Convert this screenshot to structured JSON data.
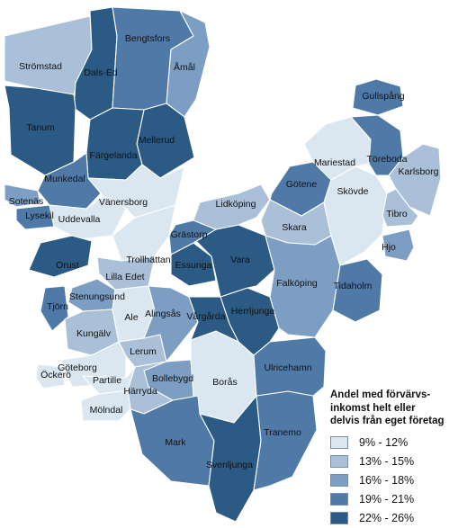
{
  "legend": {
    "title_lines": [
      "Andel med förvärvs-",
      "inkomst helt eller",
      "delvis från eget företag"
    ],
    "classes": [
      {
        "label": "9% - 12%",
        "color": "#dbe7f0"
      },
      {
        "label": "13% - 15%",
        "color": "#aac0d8"
      },
      {
        "label": "16% - 18%",
        "color": "#7d9ec3"
      },
      {
        "label": "19% - 21%",
        "color": "#4f7aa8"
      },
      {
        "label": "22% - 26%",
        "color": "#2b5a85"
      }
    ]
  },
  "municipalities": [
    {
      "name": "Strömstad",
      "class": 1
    },
    {
      "name": "Dals-Ed",
      "class": 4
    },
    {
      "name": "Bengtsfors",
      "class": 3
    },
    {
      "name": "Åmål",
      "class": 2
    },
    {
      "name": "Tanum",
      "class": 4
    },
    {
      "name": "Mellerud",
      "class": 4
    },
    {
      "name": "Färgelanda",
      "class": 4
    },
    {
      "name": "Munkedal",
      "class": 3
    },
    {
      "name": "Sotenäs",
      "class": 2
    },
    {
      "name": "Lysekil",
      "class": 3
    },
    {
      "name": "Uddevalla",
      "class": 0
    },
    {
      "name": "Vänersborg",
      "class": 0
    },
    {
      "name": "Orust",
      "class": 4
    },
    {
      "name": "Trollhättan",
      "class": 0
    },
    {
      "name": "Lilla Edet",
      "class": 1
    },
    {
      "name": "Stenungsund",
      "class": 2
    },
    {
      "name": "Tjörn",
      "class": 3
    },
    {
      "name": "Kungälv",
      "class": 1
    },
    {
      "name": "Ale",
      "class": 0
    },
    {
      "name": "Lerum",
      "class": 1
    },
    {
      "name": "Öckerö",
      "class": 0
    },
    {
      "name": "Göteborg",
      "class": 0
    },
    {
      "name": "Partille",
      "class": 0
    },
    {
      "name": "Härryda",
      "class": 1
    },
    {
      "name": "Mölndal",
      "class": 0
    },
    {
      "name": "Alingsås",
      "class": 2
    },
    {
      "name": "Bollebygd",
      "class": 2
    },
    {
      "name": "Borås",
      "class": 0
    },
    {
      "name": "Mark",
      "class": 3
    },
    {
      "name": "Svenljunga",
      "class": 4
    },
    {
      "name": "Tranemo",
      "class": 3
    },
    {
      "name": "Ulricehamn",
      "class": 3
    },
    {
      "name": "Herrljunga",
      "class": 4
    },
    {
      "name": "Vårgårda",
      "class": 4
    },
    {
      "name": "Essunga",
      "class": 4
    },
    {
      "name": "Vara",
      "class": 4
    },
    {
      "name": "Grästorp",
      "class": 3
    },
    {
      "name": "Lidköping",
      "class": 1
    },
    {
      "name": "Götene",
      "class": 3
    },
    {
      "name": "Skara",
      "class": 1
    },
    {
      "name": "Falköping",
      "class": 2
    },
    {
      "name": "Tidaholm",
      "class": 3
    },
    {
      "name": "Skövde",
      "class": 0
    },
    {
      "name": "Mariestad",
      "class": 0
    },
    {
      "name": "Töreboda",
      "class": 3
    },
    {
      "name": "Gullspång",
      "class": 3
    },
    {
      "name": "Karlsborg",
      "class": 1
    },
    {
      "name": "Tibro",
      "class": 1
    },
    {
      "name": "Hjo",
      "class": 2
    }
  ]
}
